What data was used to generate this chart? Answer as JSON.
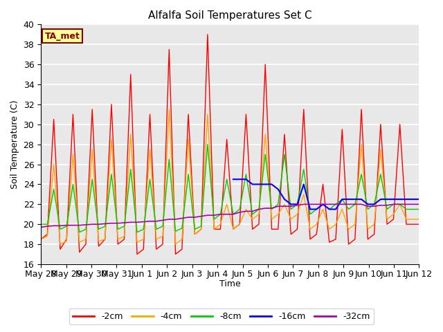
{
  "title": "Alfalfa Soil Temperatures Set C",
  "ylabel": "Soil Temperature (C)",
  "xlabel": "Time",
  "ylim": [
    16,
    40
  ],
  "yticks": [
    16,
    18,
    20,
    22,
    24,
    26,
    28,
    30,
    32,
    34,
    36,
    38,
    40
  ],
  "xtick_labels": [
    "May 28",
    "May 29",
    "May 30",
    "May 31",
    "Jun 1",
    "Jun 2",
    "Jun 3",
    "Jun 4",
    "Jun 5",
    "Jun 6",
    "Jun 7",
    "Jun 8",
    "Jun 9",
    "Jun 10",
    "Jun 11",
    "Jun 12"
  ],
  "bg_color": "#e8e8e8",
  "annotation_text": "TA_met",
  "annotation_color": "#8b0000",
  "annotation_bg": "#ffff99",
  "colors": {
    "-2cm": "#ff0000",
    "-4cm": "#ffa500",
    "-8cm": "#00cc00",
    "-16cm": "#0000ff",
    "-32cm": "#aa00aa"
  },
  "series_2cm": [
    18.5,
    19.0,
    30.5,
    17.5,
    18.5,
    31.0,
    17.2,
    18.0,
    31.5,
    17.8,
    18.5,
    32.0,
    18.0,
    18.5,
    35.0,
    17.0,
    17.5,
    31.0,
    17.5,
    18.0,
    37.5,
    17.0,
    17.5,
    31.0,
    19.0,
    19.5,
    39.0,
    19.5,
    19.5,
    28.5,
    19.5,
    20.0,
    31.0,
    19.5,
    20.0,
    36.0,
    19.5,
    19.5,
    29.0,
    19.0,
    19.5,
    31.5,
    18.5,
    19.0,
    24.0,
    18.2,
    18.5,
    29.5,
    18.0,
    18.5,
    31.5,
    18.5,
    19.0,
    30.0,
    20.0,
    20.5,
    30.0,
    20.0,
    20.0,
    20.0
  ],
  "series_4cm": [
    18.5,
    18.8,
    26.0,
    18.0,
    18.3,
    27.0,
    18.2,
    18.5,
    27.5,
    18.3,
    18.5,
    28.5,
    18.5,
    18.8,
    29.0,
    18.2,
    18.5,
    27.5,
    18.5,
    18.8,
    31.5,
    18.0,
    18.5,
    28.5,
    19.0,
    19.5,
    31.0,
    19.5,
    20.0,
    22.0,
    19.5,
    20.0,
    21.5,
    20.5,
    21.0,
    29.0,
    20.5,
    21.0,
    22.0,
    20.5,
    21.0,
    23.0,
    19.5,
    20.0,
    21.5,
    19.5,
    20.0,
    21.5,
    19.5,
    20.0,
    28.0,
    19.5,
    20.0,
    27.5,
    20.5,
    21.0,
    22.0,
    20.5,
    20.5,
    20.5
  ],
  "series_8cm": [
    20.0,
    20.0,
    23.5,
    19.5,
    19.8,
    24.0,
    19.2,
    19.5,
    24.5,
    19.5,
    19.8,
    25.0,
    19.5,
    19.8,
    25.5,
    19.2,
    19.5,
    24.5,
    19.5,
    19.8,
    26.5,
    19.3,
    19.6,
    25.0,
    19.5,
    19.8,
    28.0,
    20.5,
    21.0,
    24.5,
    21.0,
    21.5,
    25.0,
    21.0,
    21.5,
    27.0,
    21.5,
    22.0,
    27.0,
    21.5,
    22.0,
    25.5,
    21.0,
    21.5,
    22.0,
    21.5,
    22.0,
    22.5,
    21.5,
    22.0,
    25.0,
    21.5,
    22.0,
    25.0,
    21.5,
    22.0,
    22.0,
    21.5,
    21.5,
    21.5
  ],
  "series_16cm": [
    null,
    null,
    null,
    null,
    null,
    null,
    null,
    null,
    null,
    null,
    null,
    null,
    null,
    null,
    null,
    null,
    null,
    null,
    null,
    null,
    null,
    null,
    null,
    null,
    null,
    null,
    null,
    null,
    null,
    null,
    24.5,
    24.5,
    24.5,
    24.0,
    24.0,
    24.0,
    24.0,
    23.5,
    22.5,
    22.0,
    22.0,
    24.0,
    21.5,
    21.5,
    22.0,
    21.5,
    21.5,
    22.5,
    22.5,
    22.5,
    22.5,
    22.0,
    22.0,
    22.5,
    22.5,
    22.5,
    22.5,
    22.5,
    22.5,
    22.5
  ],
  "series_32cm": [
    19.7,
    19.8,
    19.85,
    19.85,
    19.9,
    19.9,
    19.9,
    19.95,
    20.0,
    20.0,
    20.05,
    20.1,
    20.1,
    20.15,
    20.2,
    20.2,
    20.25,
    20.3,
    20.3,
    20.4,
    20.5,
    20.5,
    20.6,
    20.7,
    20.7,
    20.8,
    20.9,
    20.9,
    21.0,
    21.0,
    21.0,
    21.2,
    21.3,
    21.3,
    21.5,
    21.6,
    21.6,
    21.8,
    21.8,
    21.8,
    21.9,
    22.0,
    22.0,
    22.0,
    22.0,
    22.0,
    22.0,
    22.0,
    22.0,
    22.0,
    22.0,
    21.8,
    21.8,
    21.9,
    21.9,
    22.0,
    22.0,
    22.0,
    22.0,
    22.0
  ]
}
